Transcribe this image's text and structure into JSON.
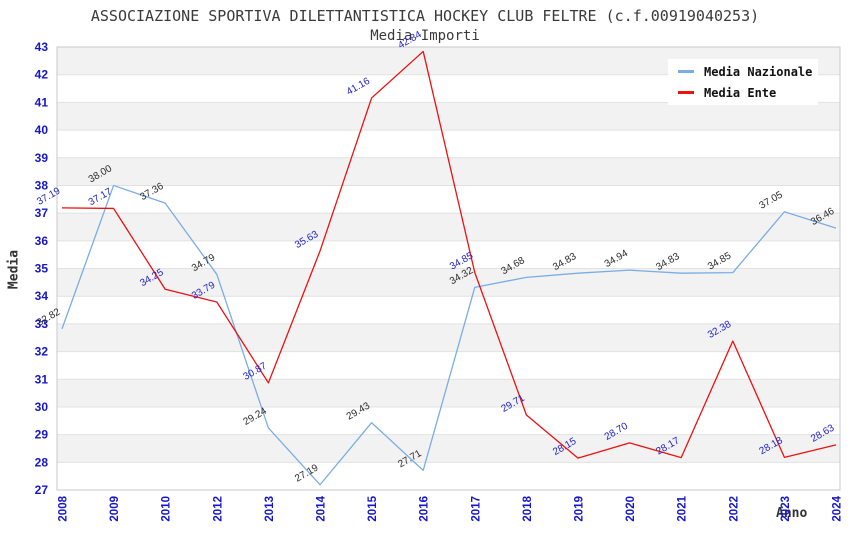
{
  "chart_data": {
    "type": "line",
    "title": "ASSOCIAZIONE SPORTIVA DILETTANTISTICA HOCKEY CLUB FELTRE (c.f.00919040253)",
    "subtitle": "Media Importi",
    "xlabel": "Anno",
    "ylabel": "Media",
    "ylim": [
      27,
      43
    ],
    "y_tick_step": 1,
    "grid": true,
    "legend_position": "top-right",
    "categories": [
      "2008",
      "2009",
      "2010",
      "2012",
      "2013",
      "2014",
      "2015",
      "2016",
      "2017",
      "2018",
      "2019",
      "2020",
      "2021",
      "2022",
      "2023",
      "2024"
    ],
    "series": [
      {
        "name": "Media Nazionale",
        "color": "#7aade4",
        "label_color": "#2b2b2b",
        "values": [
          32.82,
          38.0,
          37.36,
          34.79,
          29.24,
          27.19,
          29.43,
          27.71,
          34.32,
          34.68,
          34.83,
          34.94,
          34.83,
          34.85,
          37.05,
          36.46
        ]
      },
      {
        "name": "Media Ente",
        "color": "#ee1111",
        "label_color": "#2222cc",
        "values": [
          37.19,
          37.17,
          34.25,
          33.79,
          30.87,
          35.63,
          41.16,
          42.84,
          34.85,
          29.71,
          28.15,
          28.7,
          28.17,
          32.38,
          28.18,
          28.63
        ]
      }
    ]
  },
  "styles": {
    "tick_color": "#1515cc",
    "band_color": "#f2f2f2",
    "grid_color": "#e2e2e2",
    "border_color": "#c9c9c9",
    "legend_bg": "#ffffff"
  }
}
